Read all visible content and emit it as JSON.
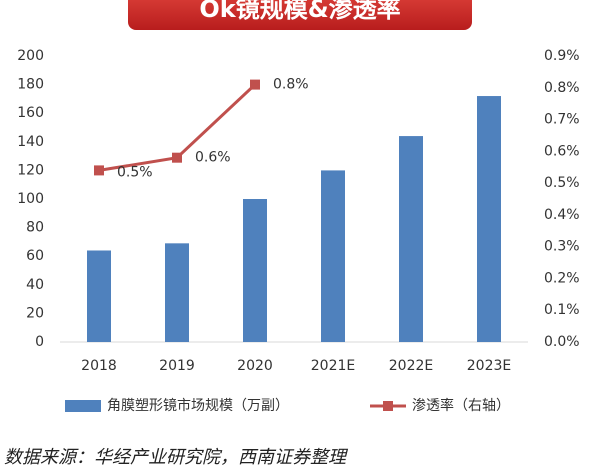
{
  "chart_data": {
    "type": "bar",
    "title": "Ok镜规模&渗透率",
    "categories": [
      "2018",
      "2019",
      "2020",
      "2021E",
      "2022E",
      "2023E"
    ],
    "series": [
      {
        "name": "角膜塑形镜市场规模（万副）",
        "type": "bar",
        "color": "#4f81bd",
        "values": [
          64,
          69,
          100,
          120,
          144,
          172
        ]
      },
      {
        "name": "渗透率（右轴）",
        "type": "line",
        "axis": "y2",
        "color": "#c0504d",
        "values": [
          0.54,
          0.58,
          0.81,
          null,
          null,
          null
        ],
        "value_labels": [
          "0.5%",
          "0.6%",
          "0.8%",
          null,
          null,
          null
        ]
      }
    ],
    "ylim": [
      0,
      200
    ],
    "yticks": [
      0,
      20,
      40,
      60,
      80,
      100,
      120,
      140,
      160,
      180,
      200
    ],
    "y2lim": [
      0,
      0.9
    ],
    "y2ticks": [
      {
        "value": 0,
        "label": "0.0%"
      },
      {
        "value": 0.1,
        "label": "0.1%"
      },
      {
        "value": 0.2,
        "label": "0.2%"
      },
      {
        "value": 0.3,
        "label": "0.3%"
      },
      {
        "value": 0.4,
        "label": "0.4%"
      },
      {
        "value": 0.5,
        "label": "0.5%"
      },
      {
        "value": 0.6,
        "label": "0.6%"
      },
      {
        "value": 0.7,
        "label": "0.7%"
      },
      {
        "value": 0.8,
        "label": "0.8%"
      },
      {
        "value": 0.9,
        "label": "0.9%"
      }
    ],
    "grid": false,
    "legend": "bottom",
    "source": "数据来源：华经产业研究院，西南证券整理"
  }
}
